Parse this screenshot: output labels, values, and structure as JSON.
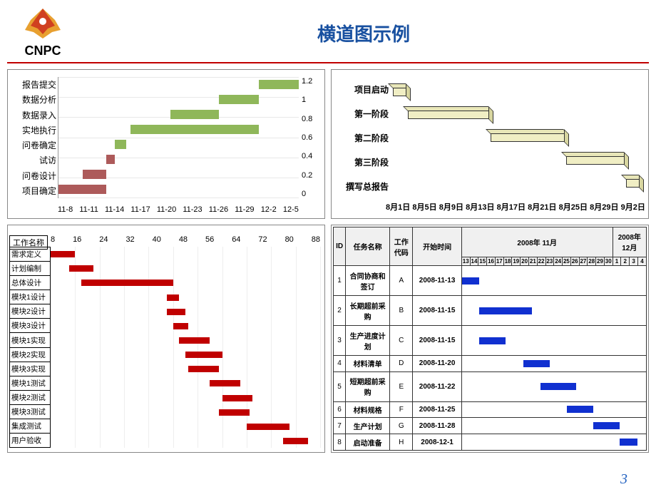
{
  "header": {
    "logo_text": "CNPC",
    "title": "横道图示例"
  },
  "page_number": "3",
  "chart1": {
    "type": "gantt-bar",
    "ylabels": [
      "报告提交",
      "数据分析",
      "数据录入",
      "实地执行",
      "问卷确定",
      "试访",
      "问卷设计",
      "项目确定"
    ],
    "xlabels": [
      "11-8",
      "11-11",
      "11-14",
      "11-17",
      "11-20",
      "11-23",
      "11-26",
      "11-29",
      "12-2",
      "12-5"
    ],
    "x_min": 0,
    "x_max": 30,
    "y2labels": [
      "1.2",
      "1",
      "0.8",
      "0.6",
      "0.4",
      "0.2",
      "0"
    ],
    "colors": {
      "green": "#8fb75a",
      "red": "#ad5a5a"
    },
    "bars": [
      {
        "row": 0,
        "start": 25,
        "end": 30,
        "color": "green"
      },
      {
        "row": 1,
        "start": 20,
        "end": 25,
        "color": "green"
      },
      {
        "row": 2,
        "start": 14,
        "end": 20,
        "color": "green"
      },
      {
        "row": 3,
        "start": 9,
        "end": 25,
        "color": "green"
      },
      {
        "row": 4,
        "start": 7,
        "end": 8.5,
        "color": "green"
      },
      {
        "row": 5,
        "start": 6,
        "end": 7,
        "color": "red"
      },
      {
        "row": 6,
        "start": 3,
        "end": 6,
        "color": "red"
      },
      {
        "row": 7,
        "start": 0,
        "end": 6,
        "color": "red"
      }
    ]
  },
  "chart2": {
    "type": "gantt-3d",
    "ylabels": [
      "项目启动",
      "第一阶段",
      "第二阶段",
      "第三阶段",
      "撰写总报告"
    ],
    "xlabels": [
      "8月1日",
      "8月5日",
      "8月9日",
      "8月13日",
      "8月17日",
      "8月21日",
      "8月25日",
      "8月29日",
      "9月2日"
    ],
    "x_min": 0,
    "x_max": 33,
    "bar_color": "#f0eec4",
    "bars": [
      {
        "row": 0,
        "start": 0,
        "end": 2
      },
      {
        "row": 1,
        "start": 2,
        "end": 13
      },
      {
        "row": 2,
        "start": 13,
        "end": 23
      },
      {
        "row": 3,
        "start": 23,
        "end": 31
      },
      {
        "row": 4,
        "start": 31,
        "end": 33
      }
    ]
  },
  "chart3": {
    "type": "gantt-bar",
    "header": "工作名称",
    "xlabels": [
      "8",
      "16",
      "24",
      "32",
      "40",
      "48",
      "56",
      "64",
      "72",
      "80",
      "88"
    ],
    "x_min": 0,
    "x_max": 88,
    "bar_color": "#c00000",
    "tasks": [
      {
        "name": "需求定义",
        "start": 0,
        "end": 8
      },
      {
        "name": "计划编制",
        "start": 6,
        "end": 14
      },
      {
        "name": "总体设计",
        "start": 10,
        "end": 40
      },
      {
        "name": "模块1设计",
        "start": 38,
        "end": 42
      },
      {
        "name": "模块2设计",
        "start": 38,
        "end": 44
      },
      {
        "name": "模块3设计",
        "start": 40,
        "end": 45
      },
      {
        "name": "模块1实现",
        "start": 42,
        "end": 52
      },
      {
        "name": "模块2实现",
        "start": 44,
        "end": 56
      },
      {
        "name": "模块3实现",
        "start": 45,
        "end": 55
      },
      {
        "name": "模块1测试",
        "start": 52,
        "end": 62
      },
      {
        "name": "模块2测试",
        "start": 56,
        "end": 66
      },
      {
        "name": "模块3测试",
        "start": 55,
        "end": 65
      },
      {
        "name": "集成测试",
        "start": 64,
        "end": 78
      },
      {
        "name": "用户验收",
        "start": 76,
        "end": 84
      }
    ]
  },
  "chart4": {
    "type": "gantt-table",
    "header": {
      "id": "ID",
      "name": "任务名称",
      "code": "工作代码",
      "start": "开始时间",
      "month1": "2008年 11月",
      "month2": "2008年 12月"
    },
    "days1": [
      "13",
      "14",
      "15",
      "16",
      "17",
      "18",
      "19",
      "20",
      "21",
      "22",
      "23",
      "24",
      "25",
      "26",
      "27",
      "28",
      "29",
      "30"
    ],
    "days2": [
      "1",
      "2",
      "3",
      "4"
    ],
    "day_min": 13,
    "day_max": 34,
    "bar_color": "#1030d0",
    "rows": [
      {
        "id": "1",
        "name": "合同协商和签订",
        "code": "A",
        "start": "2008-11-13",
        "bar_start": 13,
        "bar_end": 15
      },
      {
        "id": "2",
        "name": "长期超前采购",
        "code": "B",
        "start": "2008-11-15",
        "bar_start": 15,
        "bar_end": 21
      },
      {
        "id": "3",
        "name": "生产进度计划",
        "code": "C",
        "start": "2008-11-15",
        "bar_start": 15,
        "bar_end": 18
      },
      {
        "id": "4",
        "name": "材料清单",
        "code": "D",
        "start": "2008-11-20",
        "bar_start": 20,
        "bar_end": 23
      },
      {
        "id": "5",
        "name": "短期超前采购",
        "code": "E",
        "start": "2008-11-22",
        "bar_start": 22,
        "bar_end": 26
      },
      {
        "id": "6",
        "name": "材料规格",
        "code": "F",
        "start": "2008-11-25",
        "bar_start": 25,
        "bar_end": 28
      },
      {
        "id": "7",
        "name": "生产计划",
        "code": "G",
        "start": "2008-11-28",
        "bar_start": 28,
        "bar_end": 31
      },
      {
        "id": "8",
        "name": "启动准备",
        "code": "H",
        "start": "2008-12-1",
        "bar_start": 31,
        "bar_end": 33
      }
    ]
  }
}
